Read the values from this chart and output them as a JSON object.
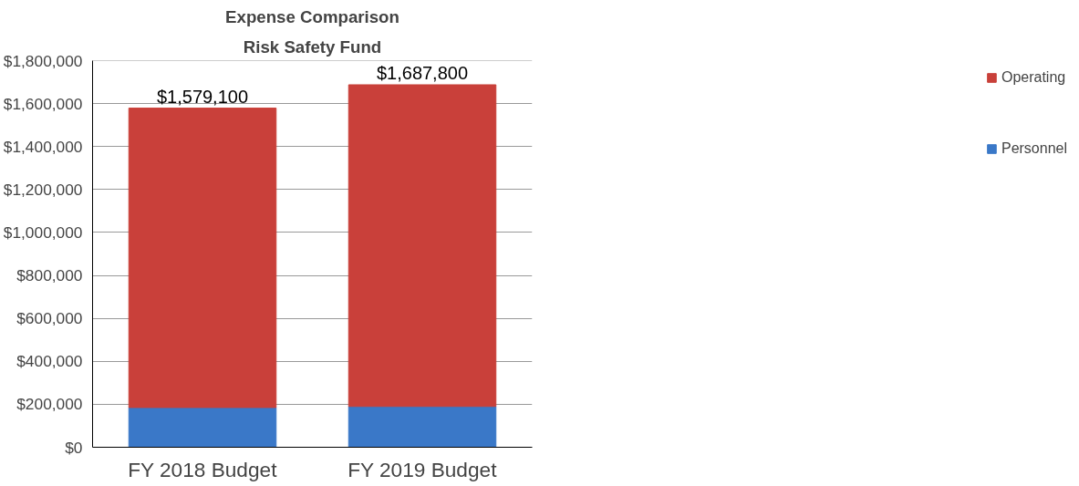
{
  "chart_data": {
    "type": "bar",
    "title": "Expense Comparison",
    "subtitle": "Risk Safety Fund",
    "categories": [
      "FY 2018 Budget",
      "FY 2019 Budget"
    ],
    "stacked": true,
    "series": [
      {
        "name": "Personnel",
        "color": "#3a78c8",
        "values": [
          185000,
          190000
        ]
      },
      {
        "name": "Operating",
        "color": "#c9403a",
        "values": [
          1394100,
          1497800
        ]
      }
    ],
    "totals": [
      "$1,579,100",
      "$1,687,800"
    ],
    "ylim": [
      0,
      1800000
    ],
    "yticks": [
      {
        "value": 0,
        "label": "$0"
      },
      {
        "value": 200000,
        "label": "$200,000"
      },
      {
        "value": 400000,
        "label": "$400,000"
      },
      {
        "value": 600000,
        "label": "$600,000"
      },
      {
        "value": 800000,
        "label": "$800,000"
      },
      {
        "value": 1000000,
        "label": "$1,000,000"
      },
      {
        "value": 1200000,
        "label": "$1,200,000"
      },
      {
        "value": 1400000,
        "label": "$1,400,000"
      },
      {
        "value": 1600000,
        "label": "$1,600,000"
      },
      {
        "value": 1800000,
        "label": "$1,800,000"
      }
    ],
    "grid": "y",
    "legend": "right"
  }
}
